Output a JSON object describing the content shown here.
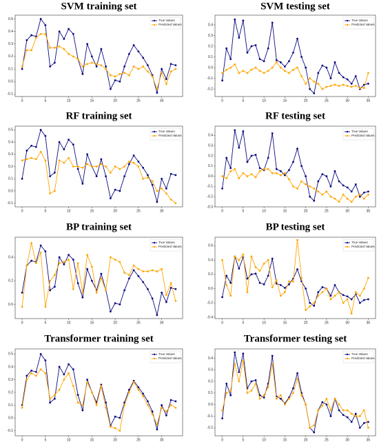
{
  "chart_data": [
    {
      "type": "line",
      "title": "SVM training set",
      "x": [
        0,
        1,
        2,
        3,
        4,
        5,
        6,
        7,
        8,
        9,
        10,
        11,
        12,
        13,
        14,
        15,
        16,
        17,
        18,
        19,
        20,
        21,
        22,
        23,
        24,
        25,
        26,
        27,
        28,
        29,
        30,
        31,
        32,
        33
      ],
      "series": [
        {
          "name": "True Values",
          "color": "#0a0a80",
          "values": [
            0.1,
            0.33,
            0.37,
            0.36,
            0.5,
            0.45,
            0.12,
            0.15,
            0.4,
            0.34,
            0.42,
            0.38,
            0.18,
            0.06,
            0.3,
            0.2,
            0.12,
            0.26,
            0.12,
            -0.06,
            0.01,
            0.0,
            0.12,
            0.22,
            0.29,
            0.24,
            0.19,
            0.13,
            0.05,
            -0.09,
            0.1,
            0.02,
            0.14,
            0.13
          ]
        },
        {
          "name": "Predicted Values",
          "color": "#ffa500",
          "values": [
            0.12,
            0.25,
            0.25,
            0.35,
            0.38,
            0.38,
            0.27,
            0.27,
            0.28,
            0.26,
            0.22,
            0.2,
            0.18,
            0.12,
            0.14,
            0.15,
            0.14,
            0.13,
            0.1,
            0.05,
            0.04,
            0.06,
            0.07,
            0.05,
            0.12,
            0.1,
            0.12,
            0.08,
            0.04,
            -0.06,
            0.07,
            -0.02,
            0.08,
            0.1
          ]
        }
      ],
      "xlim": [
        -1.5,
        34.5
      ],
      "ylim": [
        -0.12,
        0.53
      ],
      "xticks": [
        0,
        5,
        10,
        15,
        20,
        25,
        30
      ],
      "yticks": [
        -0.1,
        {
          "value": 0,
          "label": "0.0"
        },
        0.1,
        0.2,
        0.3,
        0.4,
        0.5
      ],
      "legend": "upper right"
    },
    {
      "type": "line",
      "title": "SVM testing set",
      "x": [
        0,
        1,
        2,
        3,
        4,
        5,
        6,
        7,
        8,
        9,
        10,
        11,
        12,
        13,
        14,
        15,
        16,
        17,
        18,
        19,
        20,
        21,
        22,
        23,
        24,
        25,
        26,
        27,
        28,
        29,
        30,
        31,
        32,
        33,
        34,
        35
      ],
      "series": [
        {
          "name": "True Values",
          "color": "#0a0a80",
          "values": [
            -0.12,
            0.18,
            0.08,
            0.45,
            0.28,
            0.44,
            0.14,
            0.2,
            0.21,
            0.08,
            0.06,
            0.18,
            0.42,
            0.07,
            0.05,
            0.01,
            0.06,
            0.14,
            0.27,
            0.1,
            0.0,
            -0.2,
            -0.24,
            -0.05,
            0.02,
            0.0,
            -0.1,
            0.05,
            -0.05,
            -0.09,
            -0.11,
            -0.15,
            -0.08,
            -0.2,
            -0.16,
            -0.15
          ]
        },
        {
          "name": "Predicted Values",
          "color": "#ffa500",
          "values": [
            -0.05,
            -0.02,
            0.0,
            0.03,
            -0.05,
            -0.03,
            -0.05,
            -0.02,
            0.0,
            -0.03,
            -0.05,
            -0.03,
            0.0,
            0.05,
            0.0,
            -0.03,
            -0.05,
            -0.02,
            0.0,
            -0.08,
            -0.15,
            -0.1,
            -0.13,
            -0.15,
            -0.2,
            -0.18,
            -0.17,
            -0.16,
            -0.17,
            -0.16,
            -0.17,
            -0.18,
            -0.17,
            -0.19,
            -0.19,
            -0.05
          ]
        }
      ],
      "xlim": [
        -1.75,
        36.75
      ],
      "ylim": [
        -0.27,
        0.49
      ],
      "xticks": [
        0,
        5,
        10,
        15,
        20,
        25,
        30,
        35
      ],
      "yticks": [
        -0.2,
        -0.1,
        {
          "value": 0,
          "label": "0.0"
        },
        0.1,
        0.2,
        0.3,
        0.4
      ],
      "legend": "upper right"
    },
    {
      "type": "line",
      "title": "RF training set",
      "x": [
        0,
        1,
        2,
        3,
        4,
        5,
        6,
        7,
        8,
        9,
        10,
        11,
        12,
        13,
        14,
        15,
        16,
        17,
        18,
        19,
        20,
        21,
        22,
        23,
        24,
        25,
        26,
        27,
        28,
        29,
        30,
        31,
        32,
        33
      ],
      "series": [
        {
          "name": "True Values",
          "color": "#0a0a80",
          "values": [
            0.1,
            0.33,
            0.37,
            0.36,
            0.5,
            0.45,
            0.12,
            0.15,
            0.4,
            0.34,
            0.42,
            0.38,
            0.18,
            0.06,
            0.3,
            0.2,
            0.12,
            0.26,
            0.12,
            -0.06,
            0.01,
            0.0,
            0.12,
            0.22,
            0.29,
            0.24,
            0.19,
            0.13,
            0.05,
            -0.09,
            0.1,
            0.02,
            0.14,
            0.13
          ]
        },
        {
          "name": "Predicted Values",
          "color": "#ffa500",
          "values": [
            0.25,
            0.26,
            0.27,
            0.26,
            0.32,
            0.25,
            -0.02,
            0.0,
            0.25,
            0.23,
            0.27,
            0.2,
            0.2,
            0.19,
            0.22,
            0.2,
            0.2,
            0.22,
            0.2,
            0.15,
            0.2,
            0.18,
            0.2,
            0.24,
            0.23,
            0.2,
            0.1,
            0.11,
            0.08,
            0.0,
            0.02,
            -0.02,
            -0.07,
            -0.1
          ]
        }
      ],
      "xlim": [
        -1.5,
        34.5
      ],
      "ylim": [
        -0.13,
        0.53
      ],
      "xticks": [
        0,
        5,
        10,
        15,
        20,
        25,
        30
      ],
      "yticks": [
        -0.1,
        {
          "value": 0,
          "label": "0.0"
        },
        0.1,
        0.2,
        0.3,
        0.4,
        0.5
      ],
      "legend": "upper right"
    },
    {
      "type": "line",
      "title": "RF testing set",
      "x": [
        0,
        1,
        2,
        3,
        4,
        5,
        6,
        7,
        8,
        9,
        10,
        11,
        12,
        13,
        14,
        15,
        16,
        17,
        18,
        19,
        20,
        21,
        22,
        23,
        24,
        25,
        26,
        27,
        28,
        29,
        30,
        31,
        32,
        33,
        34,
        35
      ],
      "series": [
        {
          "name": "True Values",
          "color": "#0a0a80",
          "values": [
            -0.12,
            0.18,
            0.08,
            0.45,
            0.28,
            0.44,
            0.14,
            0.2,
            0.21,
            0.08,
            0.06,
            0.18,
            0.42,
            0.07,
            0.05,
            0.01,
            0.06,
            0.14,
            0.27,
            0.1,
            0.0,
            -0.2,
            -0.24,
            -0.05,
            0.02,
            0.0,
            -0.1,
            0.05,
            -0.05,
            -0.09,
            -0.11,
            -0.15,
            -0.08,
            -0.2,
            -0.16,
            -0.15
          ]
        },
        {
          "name": "Predicted Values",
          "color": "#ffa500",
          "values": [
            0.0,
            -0.02,
            0.05,
            0.07,
            -0.02,
            0.03,
            0.0,
            0.02,
            -0.01,
            0.05,
            0.07,
            0.07,
            0.03,
            0.03,
            0.01,
            0.03,
            -0.03,
            -0.1,
            -0.12,
            -0.05,
            -0.08,
            -0.1,
            -0.12,
            -0.15,
            -0.18,
            -0.15,
            -0.2,
            -0.22,
            -0.25,
            -0.18,
            -0.22,
            -0.25,
            -0.2,
            -0.18,
            -0.22,
            -0.18
          ]
        }
      ],
      "xlim": [
        -1.75,
        36.75
      ],
      "ylim": [
        -0.3,
        0.49
      ],
      "xticks": [
        0,
        5,
        10,
        15,
        20,
        25,
        30,
        35
      ],
      "yticks": [
        -0.3,
        -0.2,
        -0.1,
        {
          "value": 0,
          "label": "0.0"
        },
        0.1,
        0.2,
        0.3,
        0.4
      ],
      "legend": "upper right"
    },
    {
      "type": "line",
      "title": "BP training set",
      "x": [
        0,
        1,
        2,
        3,
        4,
        5,
        6,
        7,
        8,
        9,
        10,
        11,
        12,
        13,
        14,
        15,
        16,
        17,
        18,
        19,
        20,
        21,
        22,
        23,
        24,
        25,
        26,
        27,
        28,
        29,
        30,
        31,
        32,
        33
      ],
      "series": [
        {
          "name": "True Values",
          "color": "#0a0a80",
          "values": [
            0.1,
            0.33,
            0.37,
            0.36,
            0.5,
            0.45,
            0.12,
            0.15,
            0.4,
            0.34,
            0.42,
            0.38,
            0.18,
            0.06,
            0.3,
            0.2,
            0.12,
            0.26,
            0.12,
            -0.06,
            0.01,
            0.0,
            0.12,
            0.22,
            0.29,
            0.24,
            0.19,
            0.13,
            0.05,
            -0.09,
            0.1,
            0.02,
            0.14,
            0.13
          ]
        },
        {
          "name": "Predicted Values",
          "color": "#ffa500",
          "values": [
            -0.02,
            0.33,
            0.52,
            0.35,
            0.44,
            -0.02,
            0.2,
            0.25,
            0.35,
            0.36,
            0.38,
            0.13,
            0.35,
            0.1,
            0.42,
            0.32,
            0.1,
            0.22,
            0.12,
            0.4,
            0.38,
            0.36,
            0.27,
            0.25,
            0.33,
            0.3,
            0.28,
            0.28,
            0.29,
            0.28,
            0.3,
            0.08,
            0.18,
            0.03
          ]
        }
      ],
      "xlim": [
        -1.5,
        34.5
      ],
      "ylim": [
        -0.12,
        0.57
      ],
      "xticks": [
        0,
        5,
        10,
        15,
        20,
        25,
        30
      ],
      "yticks": [
        {
          "value": 0,
          "label": "0.0"
        },
        0.2,
        0.4
      ],
      "legend": "upper right"
    },
    {
      "type": "line",
      "title": "BP testing set",
      "x": [
        0,
        1,
        2,
        3,
        4,
        5,
        6,
        7,
        8,
        9,
        10,
        11,
        12,
        13,
        14,
        15,
        16,
        17,
        18,
        19,
        20,
        21,
        22,
        23,
        24,
        25,
        26,
        27,
        28,
        29,
        30,
        31,
        32,
        33,
        34,
        35
      ],
      "series": [
        {
          "name": "True Values",
          "color": "#0a0a80",
          "values": [
            -0.12,
            0.18,
            0.08,
            0.45,
            0.28,
            0.44,
            0.14,
            0.2,
            0.21,
            0.08,
            0.06,
            0.18,
            0.42,
            0.07,
            0.05,
            0.01,
            0.06,
            0.14,
            0.27,
            0.1,
            0.0,
            -0.2,
            -0.24,
            -0.05,
            0.02,
            0.0,
            -0.1,
            0.05,
            -0.05,
            -0.09,
            -0.11,
            -0.15,
            -0.08,
            -0.2,
            -0.16,
            -0.15
          ]
        },
        {
          "name": "Predicted Values",
          "color": "#ffa500",
          "values": [
            0.4,
            0.05,
            -0.1,
            0.45,
            0.4,
            0.48,
            -0.05,
            0.45,
            0.3,
            0.25,
            0.35,
            0.4,
            0.02,
            0.12,
            -0.1,
            -0.05,
            0.1,
            0.1,
            0.68,
            0.15,
            -0.3,
            -0.25,
            -0.2,
            -0.1,
            -0.05,
            0.0,
            -0.15,
            -0.1,
            -0.05,
            -0.2,
            -0.15,
            -0.35,
            -0.05,
            -0.1,
            0.0,
            0.15
          ]
        }
      ],
      "xlim": [
        -1.75,
        36.75
      ],
      "ylim": [
        -0.42,
        0.72
      ],
      "xticks": [
        0,
        5,
        10,
        15,
        20,
        25,
        30,
        35
      ],
      "yticks": [
        -0.4,
        -0.2,
        {
          "value": 0,
          "label": "0.0"
        },
        0.2,
        0.4,
        0.6
      ],
      "legend": "upper right"
    },
    {
      "type": "line",
      "title": "Transformer training set",
      "x": [
        0,
        1,
        2,
        3,
        4,
        5,
        6,
        7,
        8,
        9,
        10,
        11,
        12,
        13,
        14,
        15,
        16,
        17,
        18,
        19,
        20,
        21,
        22,
        23,
        24,
        25,
        26,
        27,
        28,
        29,
        30,
        31,
        32,
        33
      ],
      "series": [
        {
          "name": "True Values",
          "color": "#0a0a80",
          "values": [
            0.1,
            0.33,
            0.37,
            0.36,
            0.5,
            0.45,
            0.12,
            0.15,
            0.4,
            0.34,
            0.42,
            0.38,
            0.18,
            0.06,
            0.3,
            0.2,
            0.12,
            0.26,
            0.12,
            -0.06,
            0.01,
            0.0,
            0.12,
            0.22,
            0.29,
            0.24,
            0.19,
            0.13,
            0.05,
            -0.09,
            0.1,
            0.02,
            0.14,
            0.13
          ]
        },
        {
          "name": "Predicted Values",
          "color": "#ffa500",
          "values": [
            0.08,
            0.3,
            0.35,
            0.33,
            0.38,
            0.35,
            0.15,
            0.18,
            0.22,
            0.3,
            0.35,
            0.25,
            0.12,
            0.1,
            0.28,
            0.2,
            0.1,
            0.25,
            0.08,
            -0.07,
            -0.08,
            -0.1,
            0.1,
            0.2,
            0.28,
            0.22,
            0.17,
            0.1,
            0.03,
            -0.05,
            0.08,
            0.05,
            0.1,
            0.08
          ]
        }
      ],
      "xlim": [
        -1.5,
        34.5
      ],
      "ylim": [
        -0.14,
        0.54
      ],
      "xticks": [
        0,
        5,
        10,
        15,
        20,
        25,
        30
      ],
      "yticks": [
        -0.1,
        {
          "value": 0,
          "label": "0.0"
        },
        0.1,
        0.2,
        0.3,
        0.4,
        0.5
      ],
      "legend": "upper right"
    },
    {
      "type": "line",
      "title": "Transformer testing set",
      "x": [
        0,
        1,
        2,
        3,
        4,
        5,
        6,
        7,
        8,
        9,
        10,
        11,
        12,
        13,
        14,
        15,
        16,
        17,
        18,
        19,
        20,
        21,
        22,
        23,
        24,
        25,
        26,
        27,
        28,
        29,
        30,
        31,
        32,
        33,
        34,
        35
      ],
      "series": [
        {
          "name": "True Values",
          "color": "#0a0a80",
          "values": [
            -0.12,
            0.18,
            0.08,
            0.45,
            0.28,
            0.44,
            0.14,
            0.2,
            0.21,
            0.08,
            0.06,
            0.18,
            0.42,
            0.07,
            0.05,
            0.01,
            0.06,
            0.14,
            0.27,
            0.1,
            0.0,
            -0.2,
            -0.24,
            -0.05,
            0.02,
            0.0,
            -0.1,
            0.05,
            -0.05,
            -0.09,
            -0.11,
            -0.15,
            -0.08,
            -0.2,
            -0.16,
            -0.15
          ]
        },
        {
          "name": "Predicted Values",
          "color": "#ffa500",
          "values": [
            -0.05,
            0.1,
            0.12,
            0.35,
            0.2,
            0.38,
            0.1,
            0.12,
            0.18,
            0.05,
            0.08,
            0.15,
            0.35,
            0.05,
            0.08,
            0.0,
            0.05,
            0.1,
            0.22,
            0.08,
            0.0,
            -0.2,
            -0.18,
            -0.05,
            -0.01,
            0.05,
            -0.05,
            0.05,
            0.0,
            -0.05,
            -0.05,
            -0.08,
            -0.1,
            -0.1,
            -0.05,
            -0.2
          ]
        }
      ],
      "xlim": [
        -1.75,
        36.75
      ],
      "ylim": [
        -0.27,
        0.48
      ],
      "xticks": [
        0,
        5,
        10,
        15,
        20,
        25,
        30,
        35
      ],
      "yticks": [
        -0.2,
        -0.1,
        {
          "value": 0,
          "label": "0.0"
        },
        0.1,
        0.2,
        0.3,
        0.4
      ],
      "legend": "upper right"
    }
  ]
}
